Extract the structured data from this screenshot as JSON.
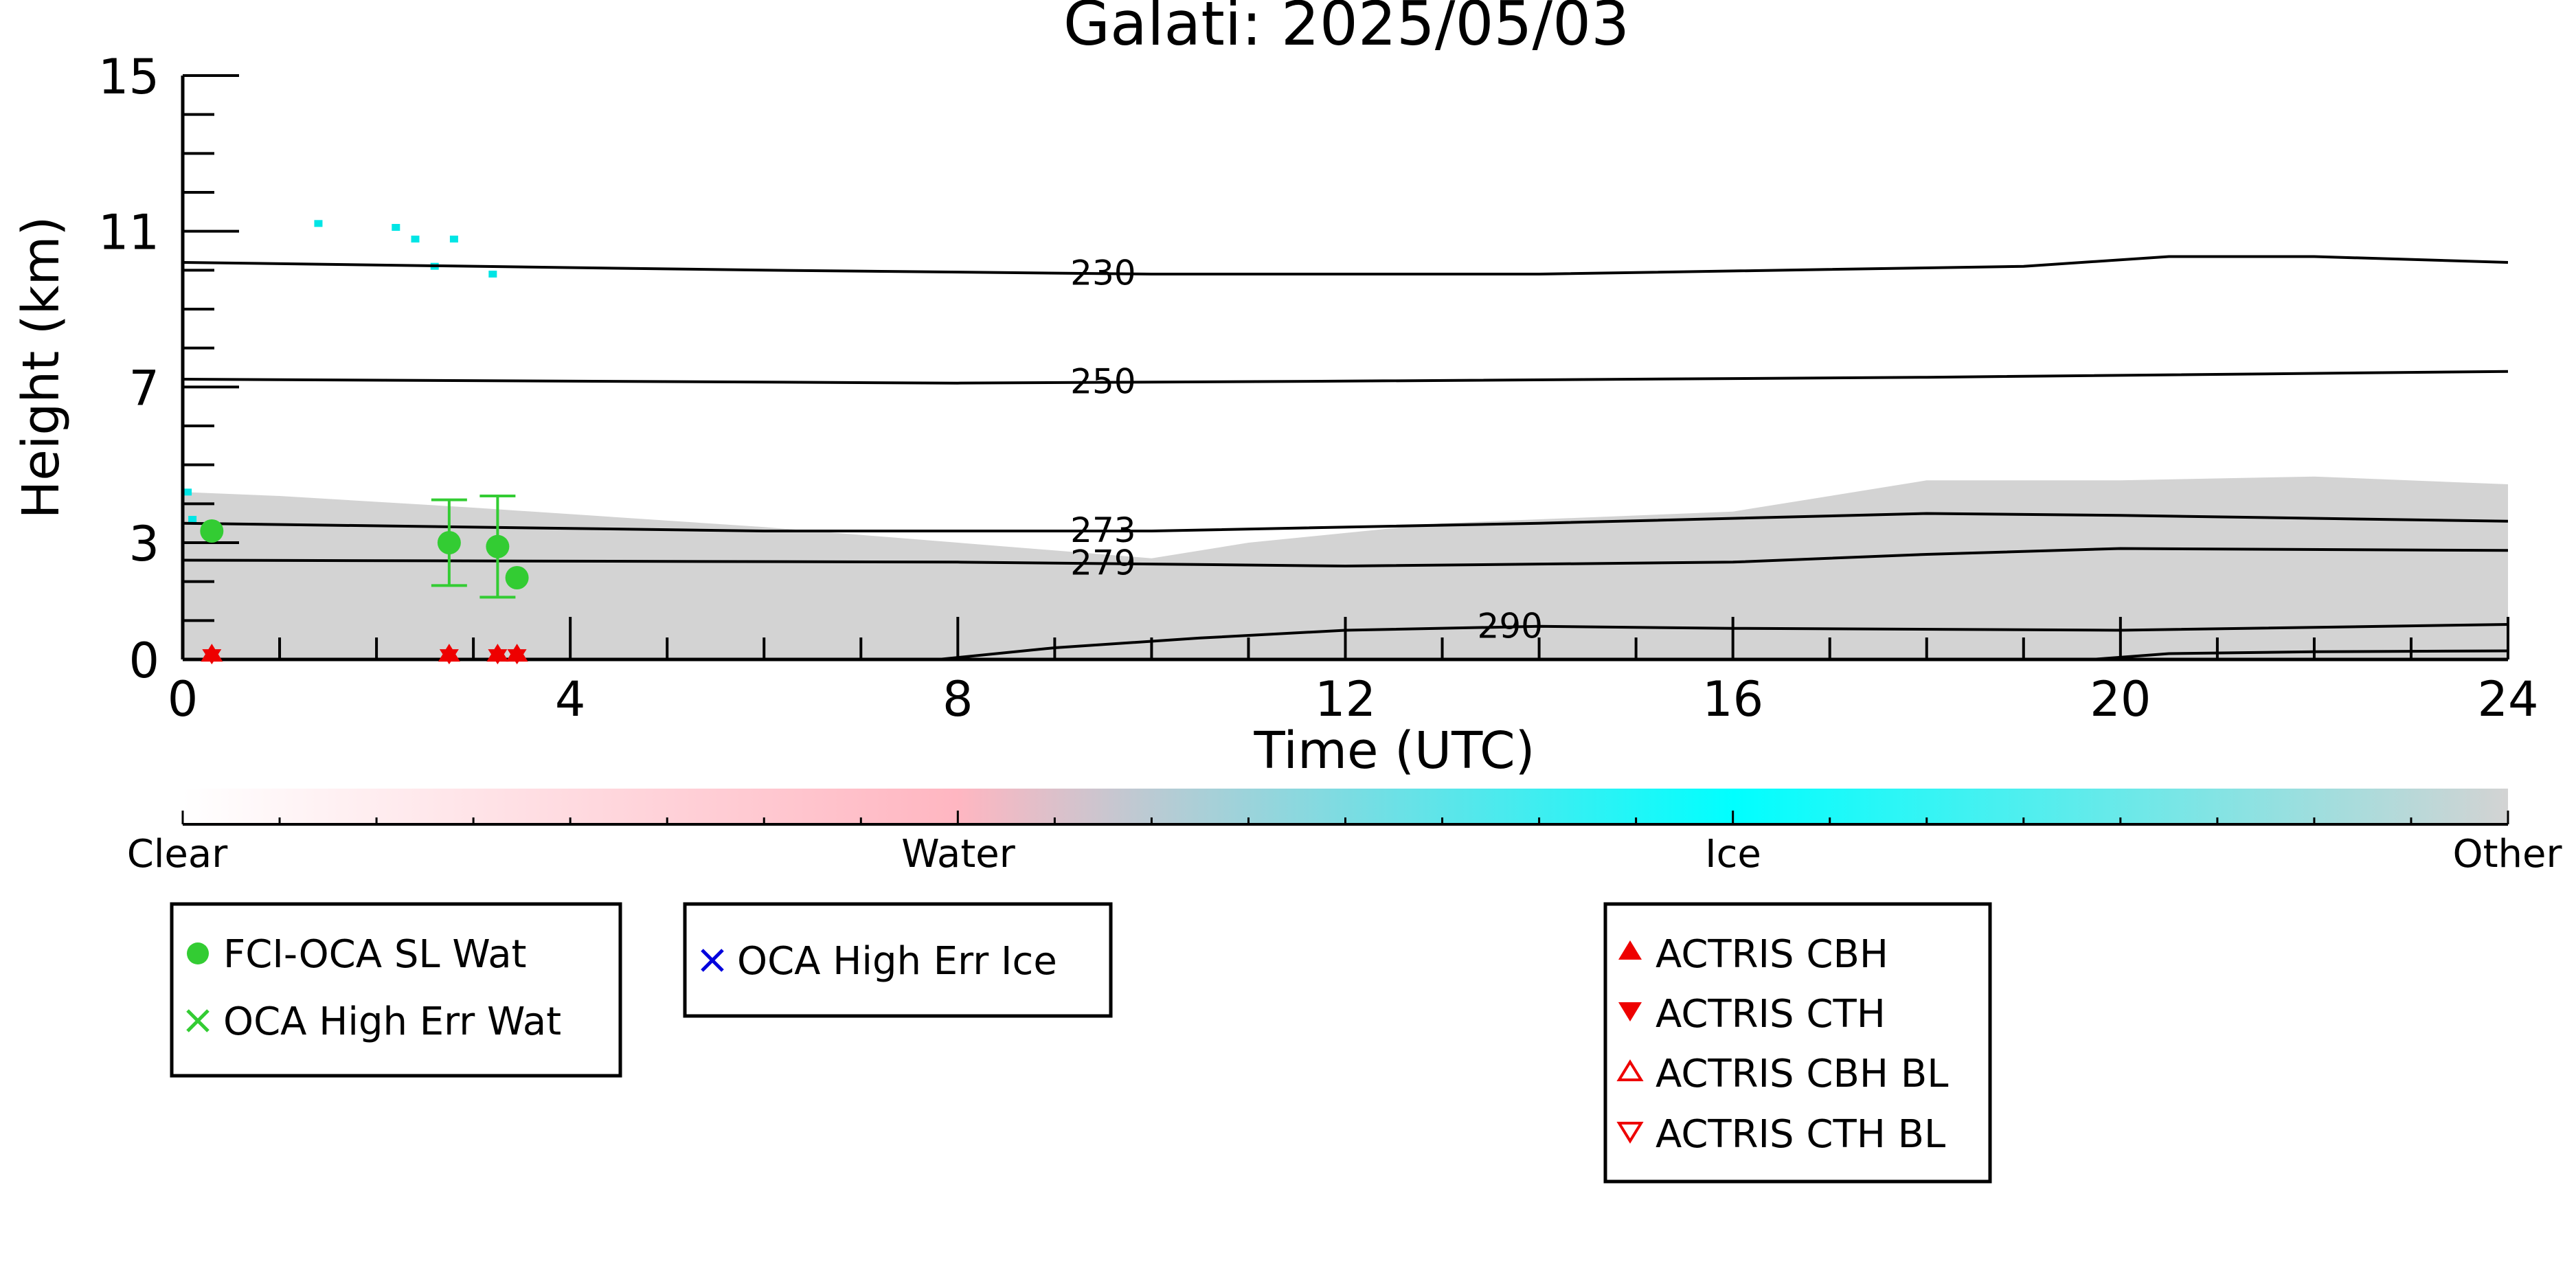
{
  "chart_data": {
    "type": "scatter",
    "title": "Galati: 2025/05/03",
    "xlabel": "Time (UTC)",
    "ylabel": "Height (km)",
    "xlim": [
      0,
      24
    ],
    "ylim": [
      0,
      15
    ],
    "x_ticks": [
      "0",
      "4",
      "8",
      "12",
      "16",
      "20",
      "24"
    ],
    "y_ticks": [
      "0",
      "3",
      "7",
      "11",
      "15"
    ],
    "x_tick_values": [
      0,
      4,
      8,
      12,
      16,
      20,
      24
    ],
    "y_tick_values": [
      0,
      3,
      7,
      11,
      15
    ],
    "background_cloud_mask": {
      "class": "Other",
      "color": "#d3d3d3",
      "top_km": [
        [
          0,
          4.3
        ],
        [
          1,
          4.2
        ],
        [
          3,
          3.9
        ],
        [
          6,
          3.4
        ],
        [
          10,
          2.6
        ],
        [
          11,
          3.0
        ],
        [
          13,
          3.5
        ],
        [
          16,
          3.8
        ],
        [
          18,
          4.6
        ],
        [
          20,
          4.6
        ],
        [
          22,
          4.7
        ],
        [
          24,
          4.5
        ]
      ]
    },
    "isotherms": [
      {
        "label": "230",
        "points": [
          [
            0,
            10.2
          ],
          [
            6,
            10.0
          ],
          [
            10,
            9.9
          ],
          [
            14,
            9.9
          ],
          [
            19,
            10.1
          ],
          [
            20.5,
            10.35
          ],
          [
            22,
            10.35
          ],
          [
            24,
            10.2
          ]
        ]
      },
      {
        "label": "250",
        "points": [
          [
            0,
            7.2
          ],
          [
            8,
            7.1
          ],
          [
            12,
            7.15
          ],
          [
            18,
            7.25
          ],
          [
            24,
            7.4
          ]
        ]
      },
      {
        "label": "273",
        "points": [
          [
            0,
            3.5
          ],
          [
            6,
            3.3
          ],
          [
            10,
            3.3
          ],
          [
            14,
            3.5
          ],
          [
            18,
            3.75
          ],
          [
            20,
            3.7
          ],
          [
            24,
            3.55
          ]
        ]
      },
      {
        "label": "279",
        "points": [
          [
            0,
            2.55
          ],
          [
            8,
            2.5
          ],
          [
            12,
            2.4
          ],
          [
            16,
            2.5
          ],
          [
            18,
            2.7
          ],
          [
            20,
            2.85
          ],
          [
            24,
            2.8
          ]
        ]
      },
      {
        "label": "290",
        "points": [
          [
            7.8,
            0
          ],
          [
            9,
            0.3
          ],
          [
            10.5,
            0.55
          ],
          [
            12,
            0.75
          ],
          [
            14,
            0.85
          ],
          [
            16,
            0.8
          ],
          [
            20,
            0.75
          ],
          [
            24,
            0.9
          ]
        ]
      },
      {
        "label": "",
        "points": [
          [
            19.7,
            0
          ],
          [
            20.5,
            0.15
          ],
          [
            22,
            0.2
          ],
          [
            24,
            0.22
          ]
        ]
      }
    ],
    "isotherm_label_x": {
      "230": 9.5,
      "250": 9.5,
      "273": 9.5,
      "279": 9.5,
      "290": 13.7
    },
    "series": [
      {
        "name": "FCI-OCA SL Wat",
        "marker": "circle",
        "color": "#33cc33",
        "points": [
          [
            0.3,
            3.3,
            null
          ],
          [
            2.75,
            3.0,
            1.1
          ],
          [
            3.25,
            2.9,
            1.3
          ],
          [
            3.45,
            2.1,
            null
          ]
        ]
      },
      {
        "name": "OCA High Err Wat",
        "marker": "x",
        "color": "#33cc33",
        "points": []
      },
      {
        "name": "OCA High Err Ice",
        "marker": "x",
        "color": "#0000dd",
        "points": []
      },
      {
        "name": "ACTRIS CBH",
        "marker": "triangle-up",
        "color": "#ee0000",
        "points": [
          [
            0.3,
            0.05
          ],
          [
            2.75,
            0.05
          ],
          [
            3.25,
            0.05
          ],
          [
            3.45,
            0.05
          ]
        ]
      },
      {
        "name": "ACTRIS CTH",
        "marker": "triangle-down",
        "color": "#ee0000",
        "points": [
          [
            0.3,
            0.05
          ],
          [
            2.75,
            0.05
          ],
          [
            3.25,
            0.05
          ],
          [
            3.45,
            0.05
          ]
        ]
      },
      {
        "name": "ACTRIS CBH BL",
        "marker": "triangle-up-open",
        "color": "#ee0000",
        "points": []
      },
      {
        "name": "ACTRIS CTH BL",
        "marker": "triangle-down-open",
        "color": "#ee0000",
        "points": []
      }
    ],
    "ice_patches": [
      [
        1.4,
        11.2
      ],
      [
        2.2,
        11.1
      ],
      [
        2.4,
        10.8
      ],
      [
        2.8,
        10.8
      ],
      [
        2.6,
        10.1
      ],
      [
        3.2,
        9.9
      ],
      [
        0.05,
        4.3
      ],
      [
        0.1,
        3.6
      ]
    ],
    "colorbar": {
      "labels": [
        "Clear",
        "Water",
        "Ice",
        "Other"
      ],
      "colors": [
        "#ffffff",
        "#ffb6c1",
        "#00ffff",
        "#d3d3d3"
      ],
      "label_positions": [
        0,
        8,
        16,
        24
      ]
    },
    "legend_placement": "below"
  }
}
